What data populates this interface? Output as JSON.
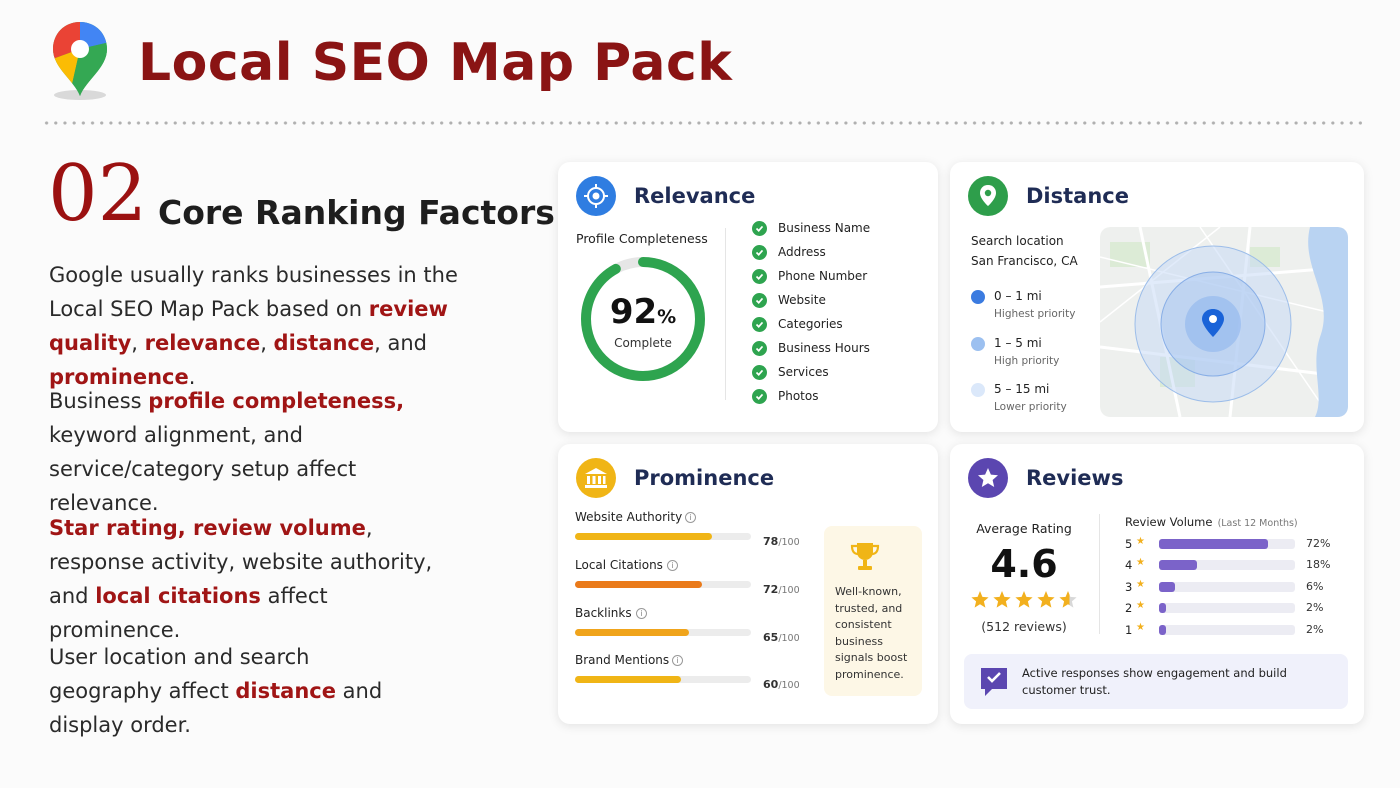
{
  "header": {
    "title": "Local SEO Map Pack"
  },
  "section": {
    "number": "02",
    "title": "Core Ranking Factors",
    "p1": {
      "t1": "Google usually ranks businesses in the Local SEO Map Pack based on ",
      "h1": "review quality",
      "t2": ", ",
      "h2": "relevance",
      "t3": ", ",
      "h3": "distance",
      "t4": ", and ",
      "h4": "prominence",
      "t5": "."
    },
    "p2": {
      "t1": "Business ",
      "h1": "profile completeness,",
      "t2": " keyword alignment, and service/category setup affect relevance."
    },
    "p3": {
      "h1": "Star rating, review volume",
      "t1": ", response activity, website authority, and ",
      "h2": "local citations",
      "t2": " affect prominence."
    },
    "p4": {
      "t1": "User location and search geography affect ",
      "h1": "distance",
      "t2": " and display order."
    }
  },
  "relevance": {
    "title": "Relevance",
    "profile_label": "Profile Completeness",
    "percent_value": 92,
    "percent_number": "92",
    "percent_sign": "%",
    "percent_caption": "Complete",
    "checklist": [
      "Business Name",
      "Address",
      "Phone Number",
      "Website",
      "Categories",
      "Business Hours",
      "Services",
      "Photos"
    ],
    "colors": {
      "ring": "#2ea44f",
      "icon": "#2f7de1"
    }
  },
  "distance": {
    "title": "Distance",
    "search_label": "Search location",
    "search_value": "San Francisco, CA",
    "ranges": [
      {
        "range": "0 – 1 mi",
        "priority": "Highest priority",
        "color": "#3b7be0"
      },
      {
        "range": "1 – 5 mi",
        "priority": "High priority",
        "color": "#9cc0f0"
      },
      {
        "range": "5 – 15 mi",
        "priority": "Lower priority",
        "color": "#dbe8fa"
      }
    ],
    "colors": {
      "icon": "#2e9e4b"
    }
  },
  "prominence": {
    "title": "Prominence",
    "metrics": [
      {
        "label": "Website Authority",
        "score": "78",
        "max": "/100",
        "value": 78,
        "color": "#f0b516"
      },
      {
        "label": "Local Citations",
        "score": "72",
        "max": "/100",
        "value": 72,
        "color": "#ea7a1a"
      },
      {
        "label": "Backlinks",
        "score": "65",
        "max": "/100",
        "value": 65,
        "color": "#f0a41b"
      },
      {
        "label": "Brand Mentions",
        "score": "60",
        "max": "/100",
        "value": 60,
        "color": "#f0b516"
      }
    ],
    "callout": "Well-known, trusted, and consistent business signals boost prominence.",
    "colors": {
      "icon": "#f0b516"
    }
  },
  "reviews": {
    "title": "Reviews",
    "avg_label": "Average Rating",
    "avg_value": "4.6",
    "stars": 4.6,
    "count_text": "(512 reviews)",
    "volume_label": "Review Volume",
    "volume_sub": "(Last 12 Months)",
    "distribution": [
      {
        "star": "5",
        "pct": "72%",
        "value": 72
      },
      {
        "star": "4",
        "pct": "18%",
        "value": 18
      },
      {
        "star": "3",
        "pct": "6%",
        "value": 6
      },
      {
        "star": "2",
        "pct": "2%",
        "value": 2
      },
      {
        "star": "1",
        "pct": "2%",
        "value": 2
      }
    ],
    "engagement": "Active responses show engagement and build customer trust.",
    "colors": {
      "icon": "#5b46b0",
      "bar": "#7b63c9",
      "star": "#f2b01e"
    }
  }
}
